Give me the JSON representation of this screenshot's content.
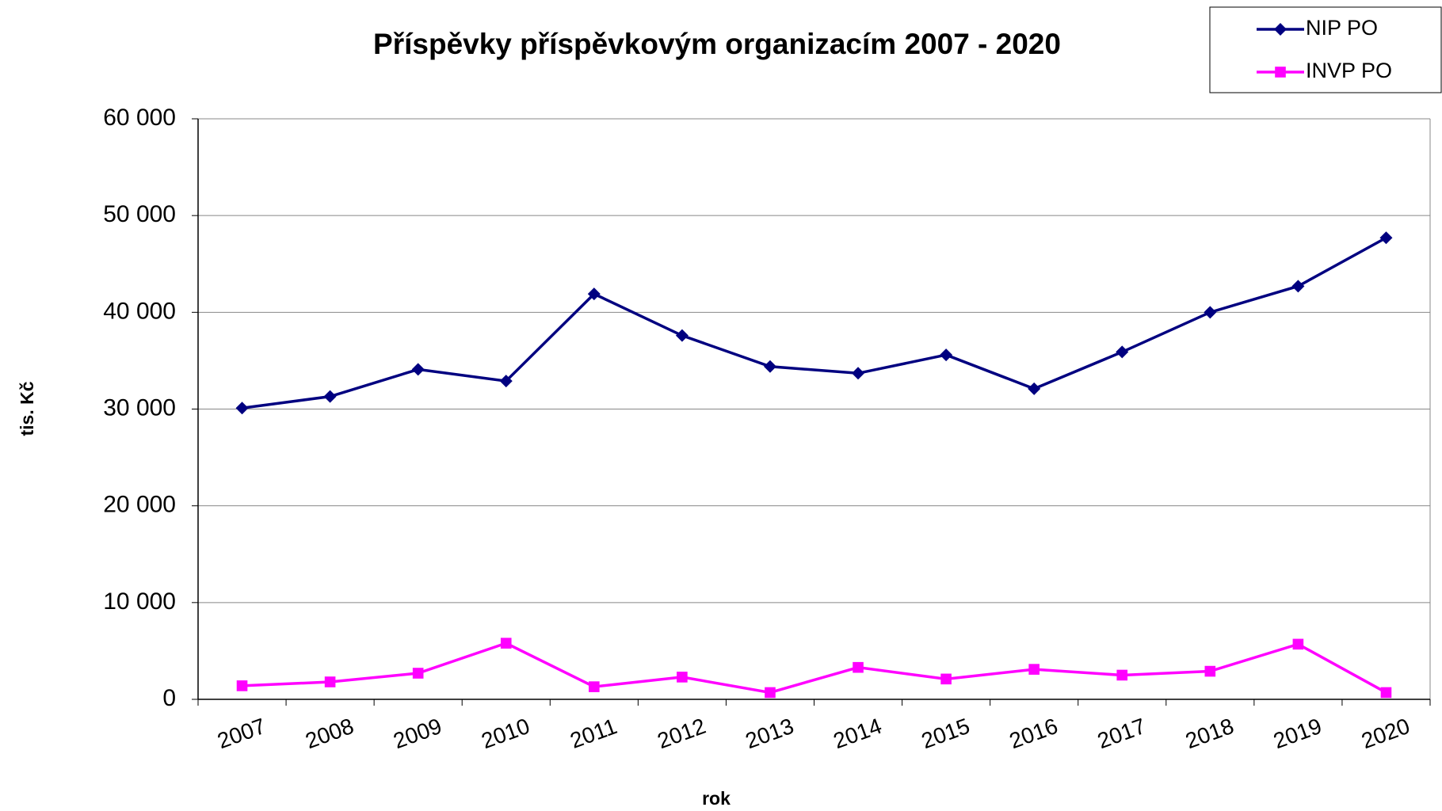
{
  "chart_data": {
    "type": "line",
    "title": "Příspěvky příspěvkovým organizacím 2007 - 2020",
    "x_label": "rok",
    "y_label": "tis. Kč",
    "categories": [
      "2007",
      "2008",
      "2009",
      "2010",
      "2011",
      "2012",
      "2013",
      "2014",
      "2015",
      "2016",
      "2017",
      "2018",
      "2019",
      "2020"
    ],
    "series": [
      {
        "name": "NIP PO",
        "color": "#000080",
        "marker": "diamond",
        "values": [
          30100,
          31300,
          34100,
          32900,
          41900,
          37600,
          34400,
          33700,
          35600,
          32100,
          35900,
          40000,
          42700,
          47700
        ]
      },
      {
        "name": "INVP PO",
        "color": "#ff00ff",
        "marker": "square",
        "values": [
          1400,
          1800,
          2700,
          5800,
          1300,
          2300,
          700,
          3300,
          2100,
          3100,
          2500,
          2900,
          5700,
          700
        ]
      }
    ],
    "ylim": [
      0,
      60000
    ],
    "yticks": [
      0,
      {
        "value": 10000,
        "label": "10 000"
      },
      {
        "value": 20000,
        "label": "20 000"
      },
      {
        "value": 30000,
        "label": "30 000"
      },
      {
        "value": 40000,
        "label": "40 000"
      },
      {
        "value": 50000,
        "label": "50 000"
      },
      {
        "value": 60000,
        "label": "60 000"
      }
    ],
    "grid": true,
    "legend": "top-right"
  }
}
